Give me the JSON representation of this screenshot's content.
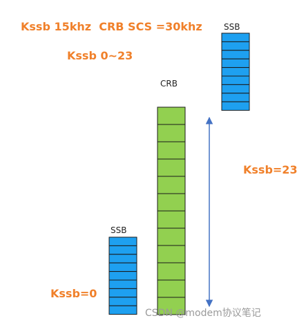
{
  "header": {
    "line1": "Kssb 15khz  CRB SCS =30khz",
    "line2": "Kssb 0~23"
  },
  "blocks": {
    "ssb_top": {
      "label": "SSB"
    },
    "crb": {
      "label": "CRB"
    },
    "ssb_bottom": {
      "label": "SSB"
    }
  },
  "annotations": {
    "span": "Kssb=23",
    "zero": "Kssb=0"
  },
  "watermark": "CSDN @modem协议笔记"
}
